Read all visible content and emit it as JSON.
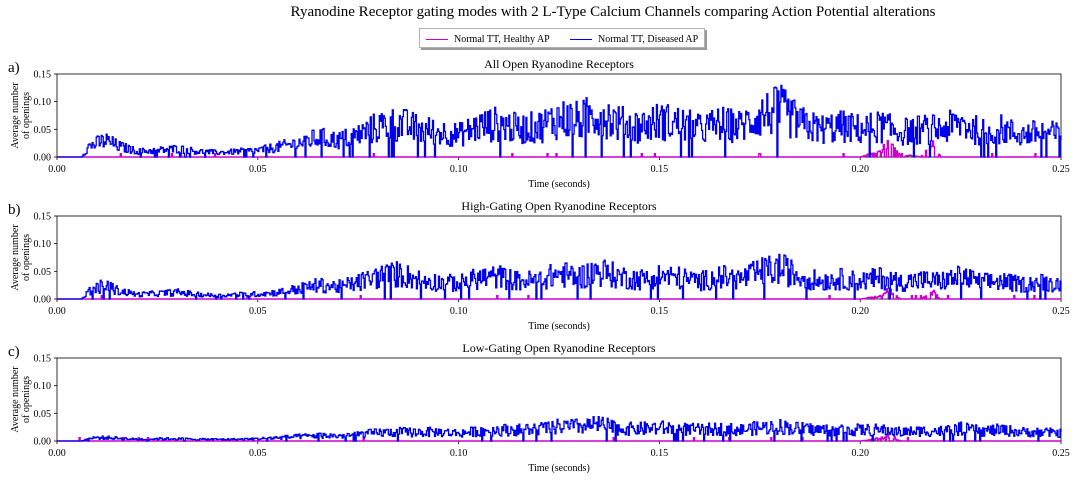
{
  "suptitle": "Ryanodine Receptor gating modes with 2 L-Type Calcium Channels comparing Action Potential alterations",
  "legend": [
    {
      "label": "Normal TT, Healthy AP",
      "color": "#cc00cc"
    },
    {
      "label": "Normal TT, Diseased AP",
      "color": "#0000ee"
    }
  ],
  "chart_data": [
    {
      "type": "line",
      "panel_label": "a)",
      "title": "All Open Ryanodine Receptors",
      "xlabel": "Time (seconds)",
      "ylabel": [
        "Average number",
        "of openings"
      ],
      "xlim": [
        0,
        0.25
      ],
      "ylim": [
        0,
        0.15
      ],
      "xticks": [
        "0.00",
        "0.05",
        "0.10",
        "0.15",
        "0.20",
        "0.25"
      ],
      "yticks": [
        "0.00",
        "0.05",
        "0.10",
        "0.15"
      ],
      "series": [
        {
          "name": "Normal TT, Diseased AP",
          "color": "#0000ee",
          "x": [
            0.0,
            0.006,
            0.008,
            0.01,
            0.012,
            0.015,
            0.02,
            0.025,
            0.03,
            0.035,
            0.04,
            0.045,
            0.05,
            0.055,
            0.06,
            0.065,
            0.07,
            0.075,
            0.08,
            0.085,
            0.09,
            0.095,
            0.1,
            0.105,
            0.11,
            0.115,
            0.12,
            0.125,
            0.13,
            0.135,
            0.14,
            0.145,
            0.15,
            0.155,
            0.16,
            0.165,
            0.17,
            0.175,
            0.18,
            0.185,
            0.19,
            0.195,
            0.2,
            0.205,
            0.21,
            0.215,
            0.22,
            0.225,
            0.23,
            0.235,
            0.24,
            0.245,
            0.25
          ],
          "y": [
            0.0,
            0.0,
            0.02,
            0.025,
            0.03,
            0.02,
            0.01,
            0.012,
            0.015,
            0.01,
            0.008,
            0.01,
            0.012,
            0.018,
            0.025,
            0.035,
            0.03,
            0.04,
            0.055,
            0.06,
            0.05,
            0.045,
            0.04,
            0.055,
            0.06,
            0.05,
            0.055,
            0.07,
            0.065,
            0.08,
            0.06,
            0.055,
            0.065,
            0.06,
            0.05,
            0.06,
            0.055,
            0.075,
            0.085,
            0.06,
            0.05,
            0.055,
            0.05,
            0.055,
            0.045,
            0.05,
            0.05,
            0.06,
            0.045,
            0.05,
            0.04,
            0.045,
            0.04
          ]
        },
        {
          "name": "Normal TT, Healthy AP",
          "color": "#cc00cc",
          "x": [
            0.0,
            0.05,
            0.1,
            0.15,
            0.2,
            0.205,
            0.207,
            0.21,
            0.215,
            0.218,
            0.22,
            0.25
          ],
          "y": [
            0.0,
            0.0,
            0.0,
            0.0,
            0.0,
            0.01,
            0.025,
            0.005,
            0.0,
            0.02,
            0.0,
            0.0
          ]
        }
      ]
    },
    {
      "type": "line",
      "panel_label": "b)",
      "title": "High-Gating Open Ryanodine Receptors",
      "xlabel": "Time (seconds)",
      "ylabel": [
        "Average number",
        "of openings"
      ],
      "xlim": [
        0,
        0.25
      ],
      "ylim": [
        0,
        0.15
      ],
      "xticks": [
        "0.00",
        "0.05",
        "0.10",
        "0.15",
        "0.20",
        "0.25"
      ],
      "yticks": [
        "0.00",
        "0.05",
        "0.10",
        "0.15"
      ],
      "series": [
        {
          "name": "Normal TT, Diseased AP",
          "color": "#0000ee",
          "x": [
            0.0,
            0.006,
            0.008,
            0.01,
            0.012,
            0.015,
            0.02,
            0.025,
            0.03,
            0.035,
            0.04,
            0.045,
            0.05,
            0.055,
            0.06,
            0.065,
            0.07,
            0.075,
            0.08,
            0.085,
            0.09,
            0.095,
            0.1,
            0.105,
            0.11,
            0.115,
            0.12,
            0.125,
            0.13,
            0.135,
            0.14,
            0.145,
            0.15,
            0.155,
            0.16,
            0.165,
            0.17,
            0.175,
            0.18,
            0.185,
            0.19,
            0.195,
            0.2,
            0.205,
            0.21,
            0.215,
            0.22,
            0.225,
            0.23,
            0.235,
            0.24,
            0.245,
            0.25
          ],
          "y": [
            0.0,
            0.0,
            0.015,
            0.02,
            0.025,
            0.015,
            0.008,
            0.01,
            0.012,
            0.008,
            0.006,
            0.008,
            0.009,
            0.012,
            0.018,
            0.025,
            0.022,
            0.03,
            0.04,
            0.045,
            0.035,
            0.03,
            0.028,
            0.038,
            0.04,
            0.032,
            0.035,
            0.045,
            0.04,
            0.05,
            0.04,
            0.035,
            0.042,
            0.038,
            0.032,
            0.04,
            0.036,
            0.048,
            0.055,
            0.04,
            0.032,
            0.036,
            0.032,
            0.038,
            0.03,
            0.034,
            0.032,
            0.04,
            0.03,
            0.032,
            0.026,
            0.03,
            0.026
          ]
        },
        {
          "name": "Normal TT, Healthy AP",
          "color": "#cc00cc",
          "x": [
            0.0,
            0.05,
            0.1,
            0.15,
            0.2,
            0.205,
            0.207,
            0.21,
            0.215,
            0.218,
            0.22,
            0.25
          ],
          "y": [
            0.0,
            0.0,
            0.0,
            0.0,
            0.0,
            0.005,
            0.015,
            0.0,
            0.0,
            0.012,
            0.0,
            0.0
          ]
        }
      ]
    },
    {
      "type": "line",
      "panel_label": "c)",
      "title": "Low-Gating Open Ryanodine Receptors",
      "xlabel": "Time (seconds)",
      "ylabel": [
        "Average number",
        "of openings"
      ],
      "xlim": [
        0,
        0.25
      ],
      "ylim": [
        0,
        0.15
      ],
      "xticks": [
        "0.00",
        "0.05",
        "0.10",
        "0.15",
        "0.20",
        "0.25"
      ],
      "yticks": [
        "0.00",
        "0.05",
        "0.10",
        "0.15"
      ],
      "series": [
        {
          "name": "Normal TT, Diseased AP",
          "color": "#0000ee",
          "x": [
            0.0,
            0.006,
            0.008,
            0.01,
            0.012,
            0.015,
            0.02,
            0.025,
            0.03,
            0.035,
            0.04,
            0.045,
            0.05,
            0.055,
            0.06,
            0.065,
            0.07,
            0.075,
            0.08,
            0.085,
            0.09,
            0.095,
            0.1,
            0.105,
            0.11,
            0.115,
            0.12,
            0.125,
            0.13,
            0.135,
            0.14,
            0.145,
            0.15,
            0.155,
            0.16,
            0.165,
            0.17,
            0.175,
            0.18,
            0.185,
            0.19,
            0.195,
            0.2,
            0.205,
            0.21,
            0.215,
            0.22,
            0.225,
            0.23,
            0.235,
            0.24,
            0.245,
            0.25
          ],
          "y": [
            0.0,
            0.0,
            0.005,
            0.006,
            0.006,
            0.005,
            0.003,
            0.004,
            0.004,
            0.003,
            0.003,
            0.003,
            0.004,
            0.006,
            0.008,
            0.01,
            0.009,
            0.012,
            0.015,
            0.016,
            0.016,
            0.016,
            0.014,
            0.018,
            0.02,
            0.02,
            0.022,
            0.026,
            0.026,
            0.03,
            0.022,
            0.022,
            0.024,
            0.022,
            0.02,
            0.022,
            0.02,
            0.024,
            0.026,
            0.022,
            0.02,
            0.02,
            0.02,
            0.02,
            0.016,
            0.018,
            0.018,
            0.022,
            0.018,
            0.02,
            0.016,
            0.016,
            0.014
          ]
        },
        {
          "name": "Normal TT, Healthy AP",
          "color": "#cc00cc",
          "x": [
            0.0,
            0.05,
            0.1,
            0.15,
            0.2,
            0.205,
            0.207,
            0.21,
            0.215,
            0.25
          ],
          "y": [
            0.0,
            0.0,
            0.0,
            0.0,
            0.0,
            0.005,
            0.01,
            0.0,
            0.0,
            0.0
          ]
        }
      ]
    }
  ]
}
